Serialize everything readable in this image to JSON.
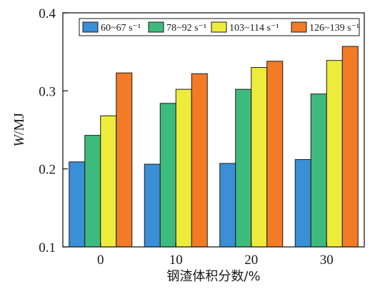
{
  "chart_data": {
    "type": "bar",
    "categories": [
      "0",
      "10",
      "20",
      "30"
    ],
    "series": [
      {
        "name": "60~67 s⁻¹",
        "color": "#3a8fd6",
        "values": [
          0.209,
          0.206,
          0.207,
          0.212
        ]
      },
      {
        "name": "78~92 s⁻¹",
        "color": "#3dbb7e",
        "values": [
          0.243,
          0.284,
          0.302,
          0.296
        ]
      },
      {
        "name": "103~114 s⁻¹",
        "color": "#eeec3a",
        "values": [
          0.268,
          0.302,
          0.33,
          0.339
        ]
      },
      {
        "name": "126~139 s⁻¹",
        "color": "#f37b26",
        "values": [
          0.323,
          0.322,
          0.338,
          0.357
        ]
      }
    ],
    "xlabel": "钢渣体积分数/%",
    "ylabel": "W/MJ",
    "ylim": [
      0.1,
      0.4
    ],
    "yticks": [
      "0.1",
      "0.2",
      "0.3",
      "0.4"
    ],
    "legend_position": "top",
    "grid": false
  }
}
